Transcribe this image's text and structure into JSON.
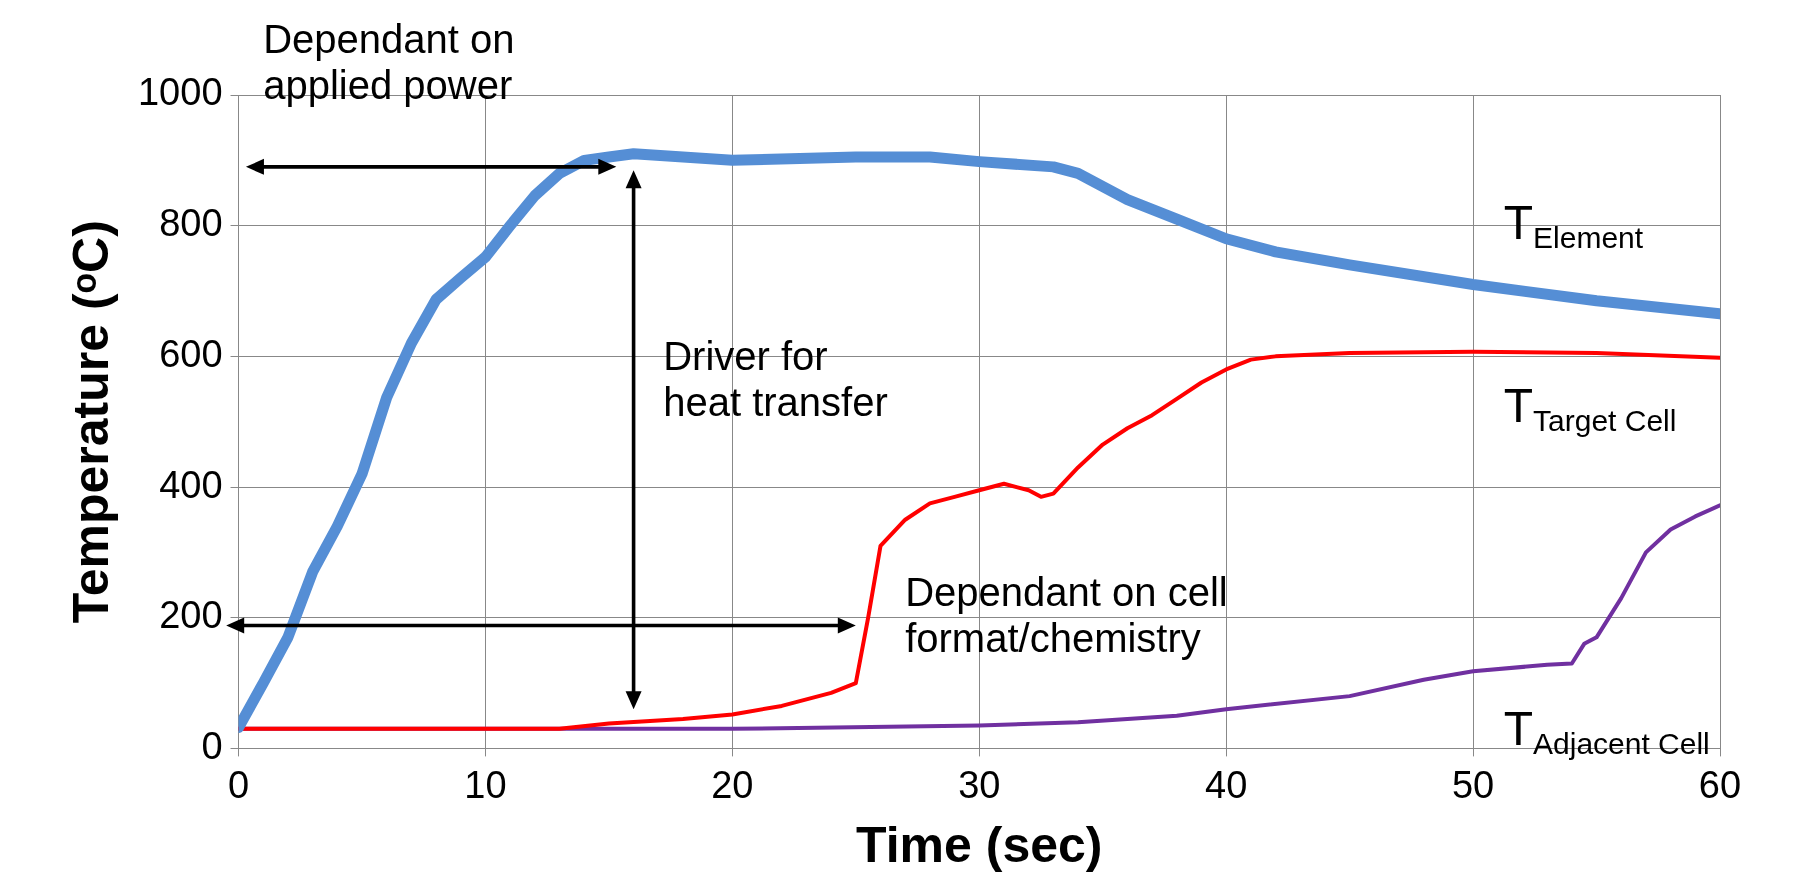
{
  "chart_data": {
    "type": "line",
    "xlabel": "Time (sec)",
    "ylabel": "Temperature (ᵒC)",
    "xlim": [
      0,
      60
    ],
    "ylim": [
      0,
      1000
    ],
    "xticks": [
      0,
      10,
      20,
      30,
      40,
      50,
      60
    ],
    "yticks": [
      0,
      200,
      400,
      600,
      800,
      1000
    ],
    "grid": true,
    "legend": false,
    "marker": "none",
    "series": [
      {
        "name": "T$_{Element}$",
        "color": "#558ed5",
        "x": [
          0,
          1,
          2,
          2.3,
          3,
          4,
          5,
          6,
          7,
          8,
          9,
          10,
          11,
          12,
          13,
          14,
          15,
          16,
          18,
          20,
          25,
          28,
          30,
          33,
          34,
          36,
          38,
          40,
          42,
          45,
          50,
          55,
          60
        ],
        "values": [
          32,
          100,
          170,
          200,
          270,
          340,
          420,
          537,
          620,
          687,
          720,
          752,
          800,
          846,
          880,
          900,
          905,
          910,
          905,
          900,
          905,
          905,
          898,
          890,
          880,
          840,
          810,
          780,
          760,
          740,
          710,
          685,
          665
        ]
      },
      {
        "name": "T$_{Target Cell}$",
        "color": "#ff0000",
        "x": [
          0,
          13,
          15,
          18,
          20,
          22,
          24,
          25,
          25.5,
          26,
          27,
          28,
          29,
          30,
          31,
          32,
          32.5,
          33,
          34,
          35,
          36,
          37,
          38,
          39,
          40,
          41,
          42,
          45,
          50,
          55,
          60
        ],
        "values": [
          30,
          30,
          38,
          45,
          52,
          65,
          85,
          100,
          200,
          310,
          350,
          375,
          385,
          395,
          405,
          395,
          385,
          390,
          430,
          465,
          490,
          510,
          535,
          560,
          580,
          595,
          600,
          605,
          607,
          605,
          598
        ]
      },
      {
        "name": "T$_{Adjacent Cell}$",
        "color": "#7030a0",
        "x": [
          0,
          20,
          30,
          34,
          38,
          40,
          45,
          48,
          50,
          53,
          54,
          54.5,
          55,
          56,
          57,
          58,
          59,
          60
        ],
        "values": [
          30,
          30,
          35,
          40,
          50,
          60,
          80,
          105,
          118,
          128,
          130,
          160,
          170,
          230,
          300,
          335,
          355,
          372
        ]
      }
    ],
    "annotations": [
      "Dependant on applied power",
      "Driver for heat transfer",
      "Dependant on cell format/chemistry"
    ]
  }
}
